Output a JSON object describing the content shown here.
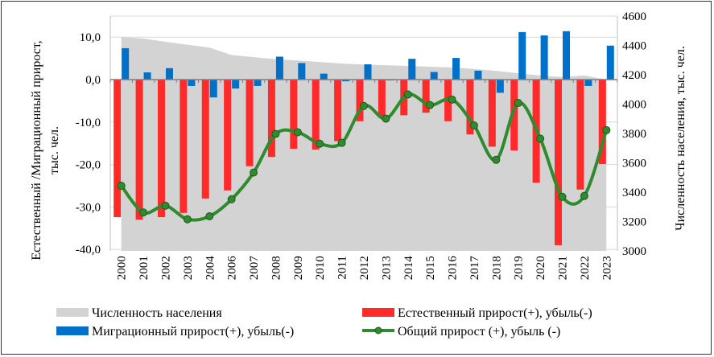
{
  "chart_data": {
    "type": "bar",
    "title": "",
    "categories": [
      "2000",
      "2001",
      "2002",
      "2003",
      "2004",
      "2006",
      "2007",
      "2008",
      "2009",
      "2010",
      "2011",
      "2012",
      "2013",
      "2014",
      "2015",
      "2016",
      "2017",
      "2018",
      "2019",
      "2020",
      "2021",
      "2022",
      "2023"
    ],
    "ylabel_left": [
      "Естественный /Миграционный прирост,",
      "тыс. чел."
    ],
    "ylabel_right": "Численность населения, тыс. чел.",
    "ylim_left": [
      -40,
      15
    ],
    "ylim_right": [
      3000,
      4600
    ],
    "yticks_left": [
      "10,0",
      "0,0",
      "-10,0",
      "-20,0",
      "-30,0",
      "-40,0"
    ],
    "ytick_values_left": [
      10,
      0,
      -10,
      -20,
      -30,
      -40
    ],
    "yticks_right": [
      "4600",
      "4400",
      "4200",
      "4000",
      "3800",
      "3600",
      "3400",
      "3200",
      "3000"
    ],
    "ytick_values_right": [
      4600,
      4400,
      4200,
      4000,
      3800,
      3600,
      3400,
      3200,
      3000
    ],
    "grid": true,
    "legend_position": "bottom",
    "series": [
      {
        "name": "Численность населения",
        "type": "area",
        "axis": "right",
        "color": "#d4d3d3",
        "values": [
          4457,
          4447,
          4425,
          4405,
          4385,
          4335,
          4320,
          4307,
          4297,
          4287,
          4277,
          4270,
          4265,
          4260,
          4255,
          4250,
          4240,
          4227,
          4210,
          4195,
          4185,
          4195,
          4167
        ]
      },
      {
        "name": "Естественный прирост(+), убыль(-)",
        "type": "bar",
        "axis": "left",
        "color": "#ff2b2b",
        "values": [
          -32.4,
          -33.0,
          -32.4,
          -31.4,
          -28.0,
          -26.1,
          -20.4,
          -18.2,
          -16.3,
          -16.5,
          -14.5,
          -9.8,
          -9.0,
          -8.4,
          -7.8,
          -9.8,
          -12.9,
          -15.8,
          -16.7,
          -24.3,
          -39.0,
          -25.9,
          -19.9
        ]
      },
      {
        "name": "Миграционный прирост(+), убыль(-)",
        "type": "bar",
        "axis": "left",
        "color": "#0070c8",
        "values": [
          7.4,
          1.7,
          2.7,
          -1.5,
          -4.2,
          -2.1,
          -1.5,
          5.4,
          3.9,
          1.4,
          -0.4,
          3.6,
          -0.2,
          4.9,
          1.8,
          5.1,
          2.1,
          -3.1,
          11.2,
          10.4,
          11.4,
          -1.5,
          8.0
        ]
      },
      {
        "name": "Общий прирост (+), убыль (-)",
        "type": "line",
        "axis": "left",
        "color": "#2e8b2e",
        "values": [
          -25.0,
          -31.3,
          -29.7,
          -32.9,
          -32.2,
          -28.2,
          -21.9,
          -12.8,
          -12.4,
          -15.1,
          -14.9,
          -6.2,
          -9.2,
          -3.5,
          -6.0,
          -4.7,
          -10.8,
          -18.9,
          -5.5,
          -13.9,
          -27.6,
          -27.4,
          -11.9
        ]
      }
    ]
  }
}
